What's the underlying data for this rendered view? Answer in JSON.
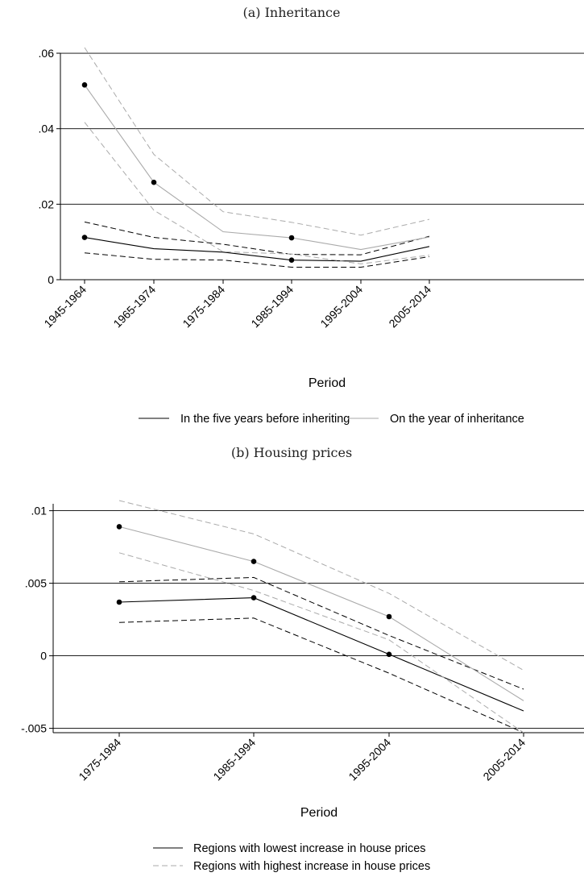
{
  "chart_data": [
    {
      "type": "line",
      "title": "(a) Inheritance",
      "xlabel": "Period",
      "ylabel": "",
      "categories": [
        "1945-1964",
        "1965-1974",
        "1975-1984",
        "1985-1994",
        "1995-2004",
        "2005-2014"
      ],
      "ylim": [
        0,
        0.0615
      ],
      "yticks": [
        0,
        0.02,
        0.04,
        0.06
      ],
      "ytick_labels": [
        "0",
        ".02",
        ".04",
        ".06"
      ],
      "grid": "horizontal",
      "legend_position": "bottom",
      "series": [
        {
          "name": "In the five years before inheriting",
          "color": "#000000",
          "values": [
            0.0112,
            0.0082,
            0.0073,
            0.0052,
            0.0049,
            0.0088
          ],
          "markers": [
            true,
            false,
            false,
            true,
            false,
            false
          ],
          "ci_lower": [
            0.0071,
            0.0054,
            0.0052,
            0.0033,
            0.0033,
            0.0061
          ],
          "ci_upper": [
            0.0153,
            0.0112,
            0.0094,
            0.0067,
            0.0066,
            0.0115
          ]
        },
        {
          "name": "On the year of inheritance",
          "color": "#aaaaaa",
          "values": [
            0.0516,
            0.0258,
            0.0127,
            0.0111,
            0.008,
            0.0113
          ],
          "markers": [
            true,
            true,
            false,
            true,
            false,
            false
          ],
          "ci_lower": [
            0.0417,
            0.0184,
            0.0074,
            0.0068,
            0.0042,
            0.0065
          ],
          "ci_upper": [
            0.0615,
            0.0332,
            0.018,
            0.0152,
            0.0118,
            0.016
          ]
        }
      ]
    },
    {
      "type": "line",
      "title": "(b) Housing prices",
      "xlabel": "Period",
      "ylabel": "",
      "categories": [
        "1975-1984",
        "1985-1994",
        "1995-2004",
        "2005-2014"
      ],
      "ylim": [
        -0.0053,
        0.0107
      ],
      "yticks": [
        -0.005,
        0,
        0.005,
        0.01
      ],
      "ytick_labels": [
        "-.005",
        "0",
        ".005",
        ".01"
      ],
      "grid": "horizontal",
      "legend_position": "bottom",
      "series": [
        {
          "name": "Regions with lowest increase in house prices",
          "color": "#000000",
          "values": [
            0.0037,
            0.004,
            0.0001,
            -0.0038
          ],
          "markers": [
            true,
            true,
            true,
            false
          ],
          "ci_lower": [
            0.0023,
            0.0026,
            -0.0012,
            -0.0053
          ],
          "ci_upper": [
            0.0051,
            0.0054,
            0.0014,
            -0.0023
          ]
        },
        {
          "name": "Regions with highest increase in house prices",
          "color": "#aaaaaa",
          "values": [
            0.0089,
            0.0065,
            0.0027,
            -0.0031
          ],
          "markers": [
            true,
            true,
            true,
            false
          ],
          "ci_lower": [
            0.0071,
            0.0045,
            0.0011,
            -0.0053
          ],
          "ci_upper": [
            0.0107,
            0.0084,
            0.0043,
            -0.001
          ]
        }
      ]
    }
  ]
}
